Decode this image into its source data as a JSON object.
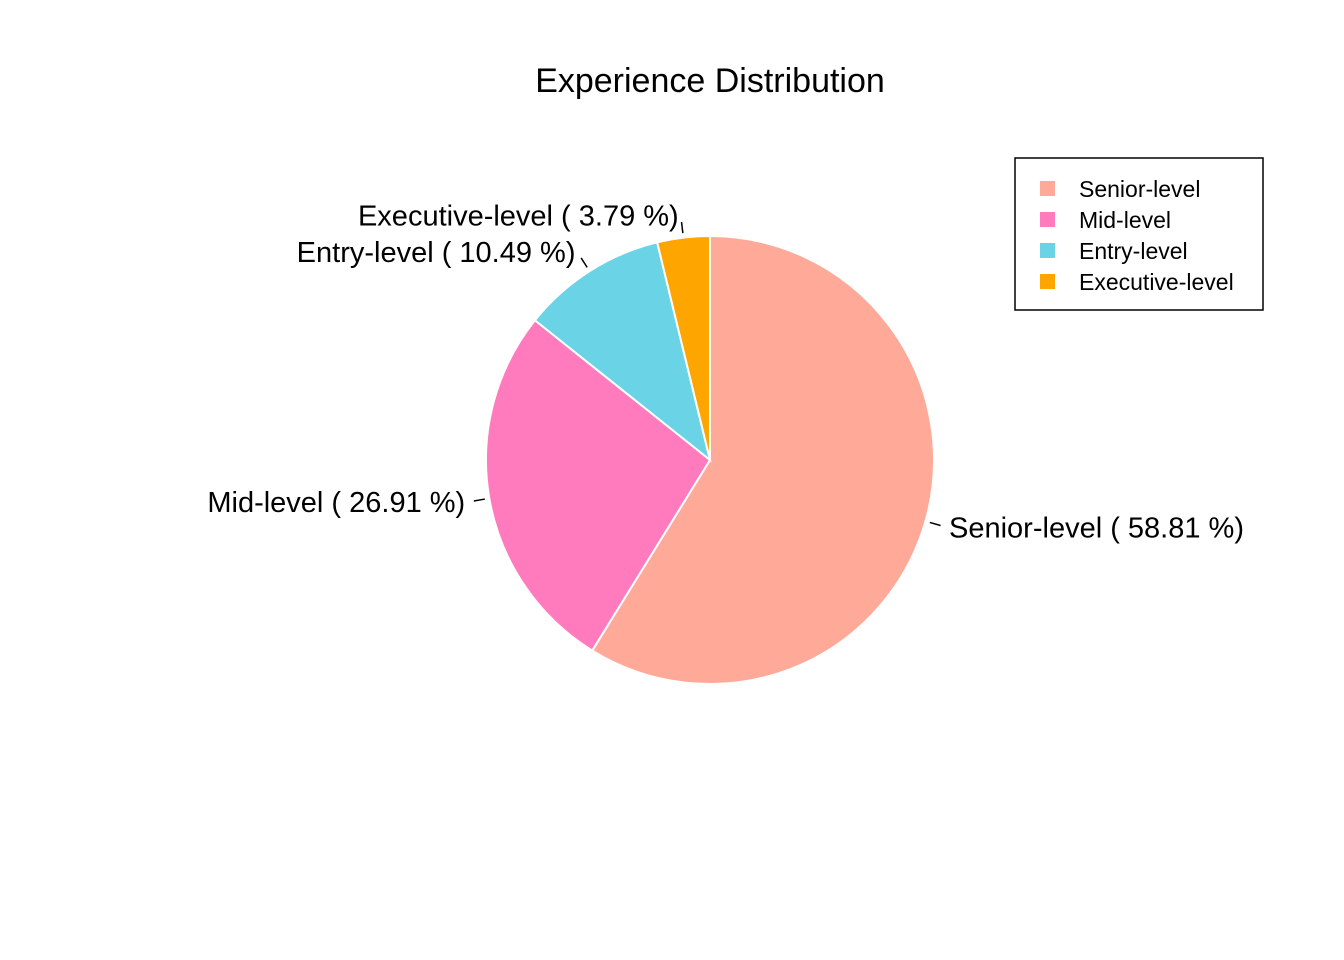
{
  "chart_data": {
    "type": "pie",
    "title": "Experience Distribution",
    "categories": [
      "Senior-level",
      "Mid-level",
      "Entry-level",
      "Executive-level"
    ],
    "values": [
      58.81,
      26.91,
      10.49,
      3.79
    ],
    "labels": [
      "Senior-level ( 58.81 %)",
      "Mid-level ( 26.91 %)",
      "Entry-level ( 10.49 %)",
      "Executive-level ( 3.79 %)"
    ],
    "colors": [
      "#FFA998",
      "#FF7BBD",
      "#6AD3E5",
      "#FFA500"
    ],
    "slice_border_color": "#FFFFFF",
    "direction": "clockwise",
    "start_angle": "12 o'clock",
    "legend": {
      "position": "top-right",
      "entries": [
        "Senior-level",
        "Mid-level",
        "Entry-level",
        "Executive-level"
      ]
    }
  }
}
